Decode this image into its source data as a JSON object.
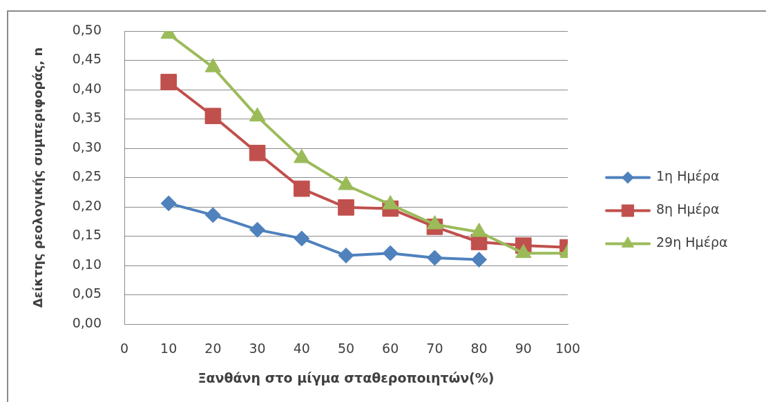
{
  "chart_data": {
    "type": "line",
    "xlabel": "Ξανθάνη στο μίγμα σταθεροποιητών(%)",
    "ylabel": "Δείκτης ρεολογικής συμπεριφοράς, n",
    "x": [
      10,
      20,
      30,
      40,
      50,
      60,
      70,
      80,
      90,
      100
    ],
    "xlim": [
      0,
      100
    ],
    "xticks": [
      0,
      10,
      20,
      30,
      40,
      50,
      60,
      70,
      80,
      90,
      100
    ],
    "ylim": [
      0,
      0.5
    ],
    "yticks": [
      {
        "value": 0,
        "label": "0,00"
      },
      {
        "value": 0.05,
        "label": "0,05"
      },
      {
        "value": 0.1,
        "label": "0,10"
      },
      {
        "value": 0.15,
        "label": "0,15"
      },
      {
        "value": 0.2,
        "label": "0,20"
      },
      {
        "value": 0.25,
        "label": "0,25"
      },
      {
        "value": 0.3,
        "label": "0,30"
      },
      {
        "value": 0.35,
        "label": "0,35"
      },
      {
        "value": 0.4,
        "label": "0,40"
      },
      {
        "value": 0.45,
        "label": "0,45"
      },
      {
        "value": 0.5,
        "label": "0,50"
      }
    ],
    "grid": "y",
    "legend": "right",
    "series": [
      {
        "name": "1η Ημέρα",
        "color": "#4f81bd",
        "marker": "diamond",
        "values": [
          0.206,
          0.186,
          0.161,
          0.146,
          0.117,
          0.121,
          0.113,
          0.11,
          null,
          null
        ]
      },
      {
        "name": "8η Ημέρα",
        "color": "#c0504d",
        "marker": "square",
        "values": [
          0.413,
          0.355,
          0.292,
          0.231,
          0.199,
          0.197,
          0.166,
          0.14,
          0.134,
          0.131
        ]
      },
      {
        "name": "29η Ημέρα",
        "color": "#9bbb59",
        "marker": "triangle",
        "values": [
          0.495,
          0.438,
          0.354,
          0.283,
          0.237,
          0.204,
          0.17,
          0.157,
          0.121,
          0.121
        ]
      }
    ]
  }
}
